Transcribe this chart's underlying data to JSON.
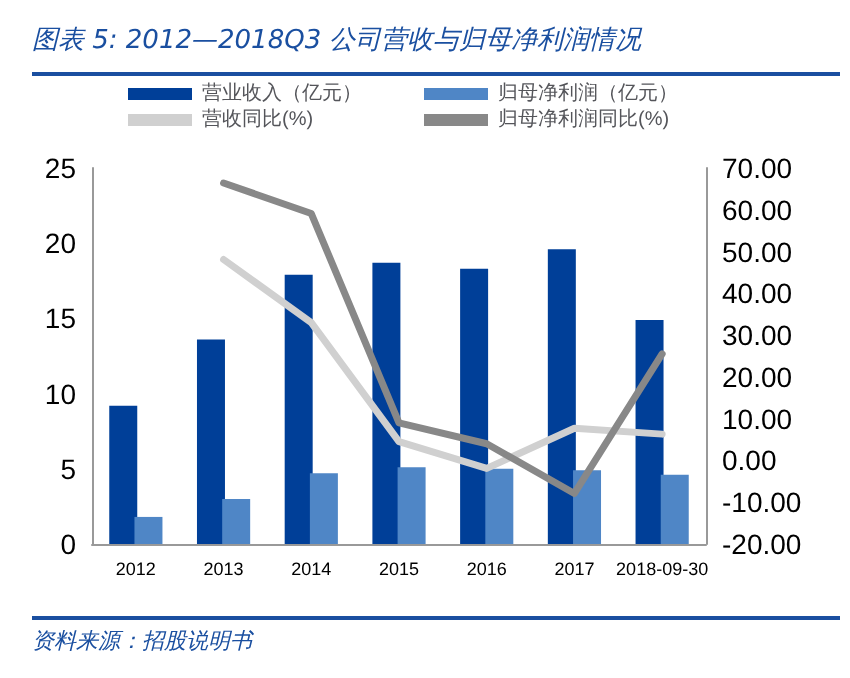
{
  "chart_data": {
    "type": "bar",
    "title": "图表 5:  2012—2018Q3 公司营收与归母净利润情况",
    "categories": [
      "2012",
      "2013",
      "2014",
      "2015",
      "2016",
      "2017",
      "2018-09-30"
    ],
    "series": [
      {
        "name": "营业收入（亿元）",
        "color": "#003f98",
        "values": [
          9.2,
          13.6,
          17.9,
          18.7,
          18.3,
          19.6,
          14.9
        ]
      },
      {
        "name": "归母净利润（亿元）",
        "color": "#4f86c6",
        "values": [
          1.8,
          3.0,
          4.7,
          5.1,
          5.0,
          4.9,
          4.6
        ]
      },
      {
        "name": "营收同比(%)",
        "type": "line",
        "axis": "y2",
        "color": "#d0d0d0",
        "values": [
          null,
          48.1,
          33.0,
          4.5,
          -1.9,
          7.7,
          6.3
        ]
      },
      {
        "name": "归母净利润同比(%)",
        "type": "line",
        "axis": "y2",
        "color": "#888888",
        "values": [
          null,
          66.4,
          59.1,
          9.0,
          4.0,
          -7.9,
          25.5
        ]
      }
    ],
    "ylim": [
      0,
      25
    ],
    "yticks": [
      0,
      5,
      10,
      15,
      20,
      25
    ],
    "y2lim": [
      -20,
      70
    ],
    "y2ticks": [
      {
        "value": -20,
        "label": "-20.00"
      },
      {
        "value": -10,
        "label": "-10.00"
      },
      {
        "value": 0,
        "label": "0.00"
      },
      {
        "value": 10,
        "label": "10.00"
      },
      {
        "value": 20,
        "label": "20.00"
      },
      {
        "value": 30,
        "label": "30.00"
      },
      {
        "value": 40,
        "label": "40.00"
      },
      {
        "value": 50,
        "label": "50.00"
      },
      {
        "value": 60,
        "label": "60.00"
      },
      {
        "value": 70,
        "label": "70.00"
      }
    ],
    "grid": false,
    "legend": "top",
    "marker": "none",
    "annotations": [
      "资料来源：招股说明书"
    ]
  }
}
